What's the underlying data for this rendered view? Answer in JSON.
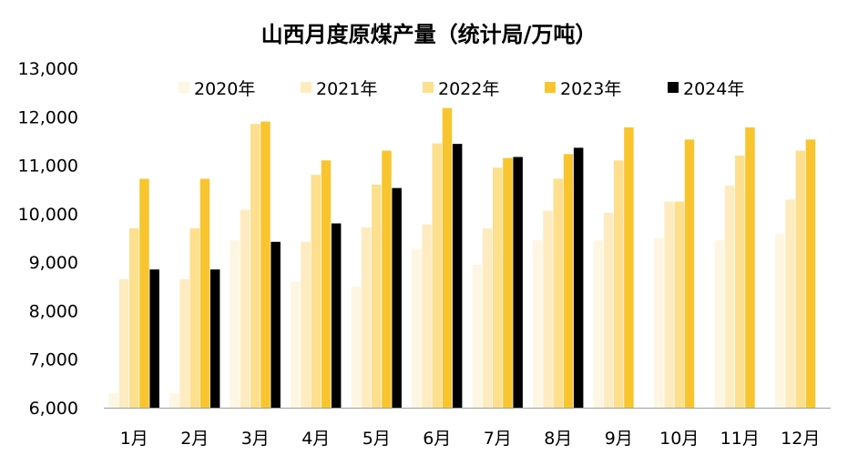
{
  "chart_data": {
    "type": "bar",
    "title": "山西月度原煤产量（统计局/万吨）",
    "categories": [
      "1月",
      "2月",
      "3月",
      "4月",
      "5月",
      "6月",
      "7月",
      "8月",
      "9月",
      "10月",
      "11月",
      "12月"
    ],
    "ylim": [
      6000,
      13000
    ],
    "yticks": [
      6000,
      7000,
      8000,
      9000,
      10000,
      11000,
      12000,
      13000
    ],
    "ytick_labels": [
      "6,000",
      "7,000",
      "8,000",
      "9,000",
      "10,000",
      "11,000",
      "12,000",
      "13,000"
    ],
    "legend_position": "top",
    "grid": false,
    "series": [
      {
        "name": "2020年",
        "color": "#FDF6E3",
        "values": [
          6300,
          6300,
          9450,
          8600,
          8500,
          9280,
          8950,
          9450,
          9450,
          9500,
          9450,
          9580
        ]
      },
      {
        "name": "2021年",
        "color": "#FEEBC0",
        "values": [
          8650,
          8650,
          10080,
          9420,
          9720,
          9780,
          9700,
          10060,
          10020,
          10250,
          10580,
          10290
        ]
      },
      {
        "name": "2022年",
        "color": "#FDDF8E",
        "values": [
          9700,
          9700,
          11850,
          10800,
          10600,
          11450,
          10950,
          10720,
          11100,
          10250,
          11200,
          11300
        ]
      },
      {
        "name": "2023年",
        "color": "#F8C52F",
        "values": [
          10720,
          10720,
          11900,
          11100,
          11300,
          12180,
          11150,
          11230,
          11780,
          11530,
          11780,
          11530
        ]
      },
      {
        "name": "2024年",
        "color": "#000000",
        "values": [
          8850,
          8850,
          9420,
          9800,
          10530,
          11440,
          11170,
          11360,
          null,
          null,
          null,
          null
        ]
      }
    ]
  }
}
